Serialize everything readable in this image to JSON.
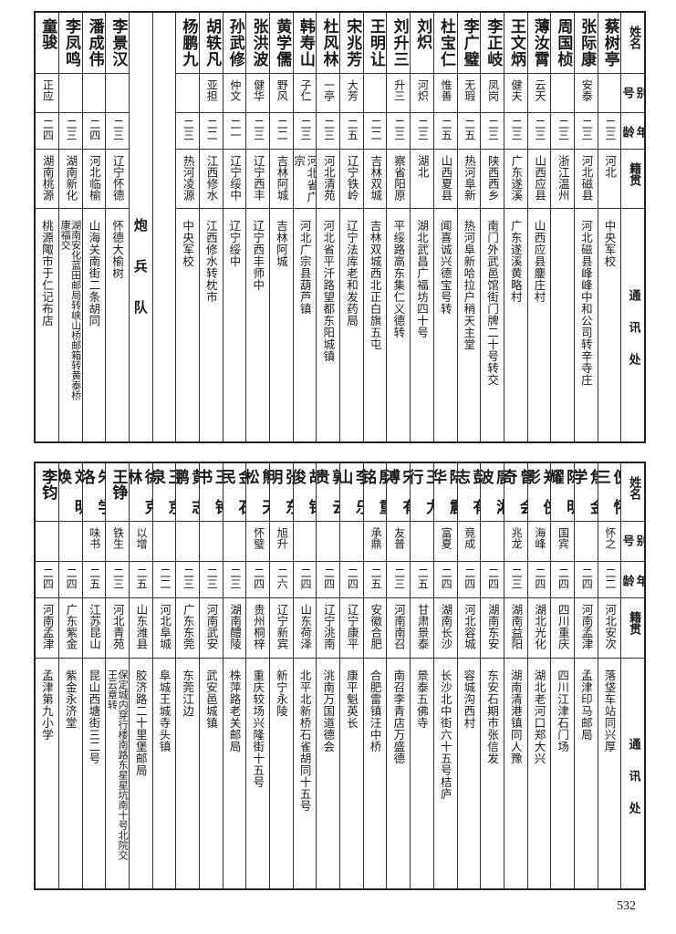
{
  "headers": [
    "姓名",
    "别号",
    "年龄",
    "籍贯",
    "通讯处"
  ],
  "top": [
    {
      "name": "蔡树亭",
      "alias": "",
      "age": "二三",
      "origin": "河北",
      "address": "中央军校"
    },
    {
      "name": "张际康",
      "alias": "安泰",
      "age": "二三",
      "origin": "河北磁县",
      "address": "河北磁县峰峰中和公司转辛寺庄"
    },
    {
      "name": "周国桢",
      "alias": "",
      "age": "二三",
      "origin": "浙江温州",
      "address": ""
    },
    {
      "name": "薄汝霄",
      "alias": "云天",
      "age": "二三",
      "origin": "山西应县",
      "address": "山西应县鏖庄村"
    },
    {
      "name": "王文炳",
      "alias": "健夫",
      "age": "二三",
      "origin": "广东遂溪",
      "address": "广东遂溪黄略村"
    },
    {
      "name": "李正岐",
      "alias": "凤岗",
      "age": "二三",
      "origin": "陕西西乡",
      "address": "南门外武邑馆街门牌二十号转交"
    },
    {
      "name": "李广璧",
      "alias": "无瑕",
      "age": "二五",
      "origin": "热河阜新",
      "address": "热河阜新哈拉户稍天主堂"
    },
    {
      "name": "杜宝仁",
      "alias": "惟善",
      "age": "二五",
      "origin": "山西夏县",
      "address": "闻喜诚兴德宝号转"
    },
    {
      "name": "刘炽",
      "alias": "河炽",
      "age": "二三",
      "origin": "湖北",
      "address": "湖北武昌广福坊四十号"
    },
    {
      "name": "刘升三",
      "alias": "升三",
      "age": "二三",
      "origin": "察省阳原",
      "address": "平绥路高东集仁义德转"
    },
    {
      "name": "王明让",
      "alias": "",
      "age": "二二",
      "origin": "吉林双城",
      "address": "吉林双城西北正白旗五屯"
    },
    {
      "name": "宋兆芳",
      "alias": "大芳",
      "age": "二五",
      "origin": "辽宁铁岭",
      "address": "辽宁法库老和发药局"
    },
    {
      "name": "杜风林",
      "alias": "一亭",
      "age": "二三",
      "origin": "河北清苑",
      "address": "河北省平汘路望都东阳城镇"
    },
    {
      "name": "韩寿山",
      "alias": "子仁",
      "age": "二三",
      "origin": "河北省广宗",
      "address": "河北广宗县葫芦镇"
    },
    {
      "name": "黄学儒",
      "alias": "野风",
      "age": "二二",
      "origin": "吉林阿城",
      "address": "吉林阿城"
    },
    {
      "name": "张洪波",
      "alias": "健华",
      "age": "二三",
      "origin": "辽宁西丰",
      "address": "辽宁西丰师中"
    },
    {
      "name": "孙武修",
      "alias": "仲文",
      "age": "二一",
      "origin": "辽宁绥中",
      "address": "辽宁绥中"
    },
    {
      "name": "胡轶凡",
      "alias": "亚担",
      "age": "二二",
      "origin": "江西修水",
      "address": "江西修水转枕市"
    },
    {
      "name": "杨鹏九",
      "alias": "",
      "age": "二三",
      "origin": "热河凌源",
      "address": "中央军校"
    },
    {
      "blank": true
    },
    {
      "section": "炮兵队"
    },
    {
      "name": "李景汉",
      "alias": "",
      "age": "二三",
      "origin": "辽宁怀德",
      "address": "怀德大榆树"
    },
    {
      "name": "潘成伟",
      "alias": "",
      "age": "二四",
      "origin": "河北临榆",
      "address": "山海关南街二条胡同"
    },
    {
      "name": "李凤鸣",
      "alias": "",
      "age": "二三",
      "origin": "湖南新化",
      "address": "湖南安化蓝田邮局转峡山桥邮箱转黄泰桥\n康福交"
    },
    {
      "name": "童骏",
      "alias": "正应",
      "age": "二四",
      "origin": "湖南桃源",
      "address": "桃源陬市于仁记布店"
    }
  ],
  "bottom": [
    {
      "name": "倪怀三",
      "alias": "怀之",
      "age": "二二",
      "origin": "河北安次",
      "address": "落垡车站同兴厚"
    },
    {
      "name": "焦金学",
      "alias": "",
      "age": "二四",
      "origin": "河南孟津",
      "address": "孟津印马邮局"
    },
    {
      "name": "陈明耀",
      "alias": "国宾",
      "age": "二四",
      "origin": "四川重庆",
      "address": "四川江津石门场"
    },
    {
      "name": "郑侠影",
      "alias": "海峰",
      "age": "二四",
      "origin": "湖北光化",
      "address": "湖北老河口郑大兴"
    },
    {
      "name": "曾会奇",
      "alias": "兆龙",
      "age": "二三",
      "origin": "湖南益阳",
      "address": "湖南清港镇同人豫"
    },
    {
      "name": "唐湘波",
      "alias": "",
      "age": "二四",
      "origin": "湖南东安",
      "address": "东安石期市张信发"
    },
    {
      "name": "彭有志",
      "alias": "竟成",
      "age": "二四",
      "origin": "河北容城",
      "address": "容城沟西村"
    },
    {
      "name": "陆震华",
      "alias": "富夏",
      "age": "二四",
      "origin": "湖南长沙",
      "address": "长沙北中街六十五号桔庐"
    },
    {
      "name": "王力行",
      "alias": "",
      "age": "二五",
      "origin": "甘肃景泰",
      "address": "景泰五佛寺"
    },
    {
      "name": "宋有溥",
      "alias": "友普",
      "age": "二三",
      "origin": "河南南召",
      "address": "南召李青店万盛德"
    },
    {
      "name": "殷重铭",
      "alias": "承鼎",
      "age": "二五",
      "origin": "安徽合肥",
      "address": "合肥雷镇汪中桥"
    },
    {
      "name": "李乐山",
      "alias": "",
      "age": "二四",
      "origin": "辽宁康平",
      "address": "康平魁英长"
    },
    {
      "name": "郭云贵",
      "alias": "",
      "age": "二四",
      "origin": "辽宁洮南",
      "address": "洮南万国道德会"
    },
    {
      "name": "胡铭俊",
      "alias": "",
      "age": "二四",
      "origin": "山东荷泽",
      "address": "北平北新桥石雀胡同十五号"
    },
    {
      "name": "张东明",
      "alias": "旭升",
      "age": "二六",
      "origin": "辽宁新宾",
      "address": "新宁永陵"
    },
    {
      "name": "熊天松",
      "alias": "怀璧",
      "age": "二四",
      "origin": "贵州桐梓",
      "address": "重庆较场兴隆街十五号"
    },
    {
      "name": "金石民",
      "alias": "",
      "age": "二三",
      "origin": "湖南醴陵",
      "address": "株萍路老关邮局"
    },
    {
      "name": "王钟书",
      "alias": "",
      "age": "二三",
      "origin": "河南武安",
      "address": "武安邑城镇"
    },
    {
      "name": "黄志鹏",
      "alias": "",
      "age": "二三",
      "origin": "广东东莞",
      "address": "东莞江边"
    },
    {
      "name": "王京泉",
      "alias": "",
      "age": "二二",
      "origin": "河北阜城",
      "address": "阜城王城寺头镇"
    },
    {
      "name": "徐克林",
      "alias": "以增",
      "age": "二五",
      "origin": "山东潍县",
      "address": "胶济路二十里堡邮局"
    },
    {
      "name": "王铮",
      "alias": "铁生",
      "age": "二三",
      "origin": "河北青苑",
      "address": "保定城内穿行楼南路东星星坑南十号北院交\n王云章转"
    },
    {
      "name": "朱学洛",
      "alias": "味书",
      "age": "二五",
      "origin": "江苏昆山",
      "address": "昆山西塘街三二号"
    },
    {
      "name": "刘明焕",
      "alias": "",
      "age": "二四",
      "origin": "广东紫金",
      "address": "紫金永济堂"
    },
    {
      "name": "李钧",
      "alias": "",
      "age": "二四",
      "origin": "河南孟津",
      "address": "孟津第九小学"
    }
  ],
  "page_number": "532"
}
